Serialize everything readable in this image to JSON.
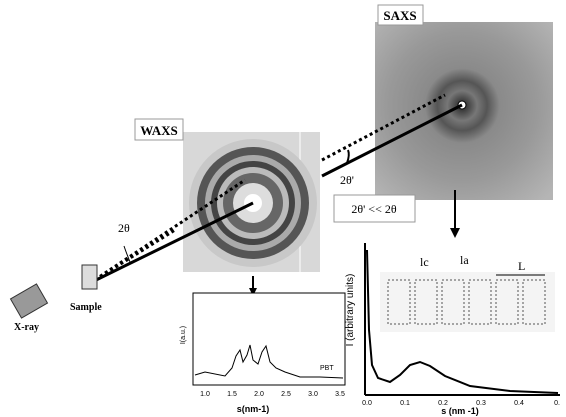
{
  "saxs_label": "SAXS",
  "waxs_label": "WAXS",
  "angle_waxs": "2θ",
  "angle_saxs": "2θ'",
  "angle_compare": "2θ' << 2θ",
  "source_label": "X-ray",
  "sample_label": "Sample",
  "waxs_plot": {
    "y_label": "I(a.u.)",
    "x_label": "s(nm-1)",
    "x_ticks": [
      "1.0",
      "1.5",
      "2.0",
      "2.5",
      "3.0",
      "3.5"
    ],
    "annotation": "PBT"
  },
  "saxs_plot": {
    "y_label": "I (arbitrary units)",
    "x_label": "s (nm -1)",
    "x_ticks": [
      "0.0",
      "0.1",
      "0.2",
      "0.3",
      "0.4",
      "0."
    ],
    "inset_labels": [
      "lc",
      "la",
      "L"
    ]
  }
}
